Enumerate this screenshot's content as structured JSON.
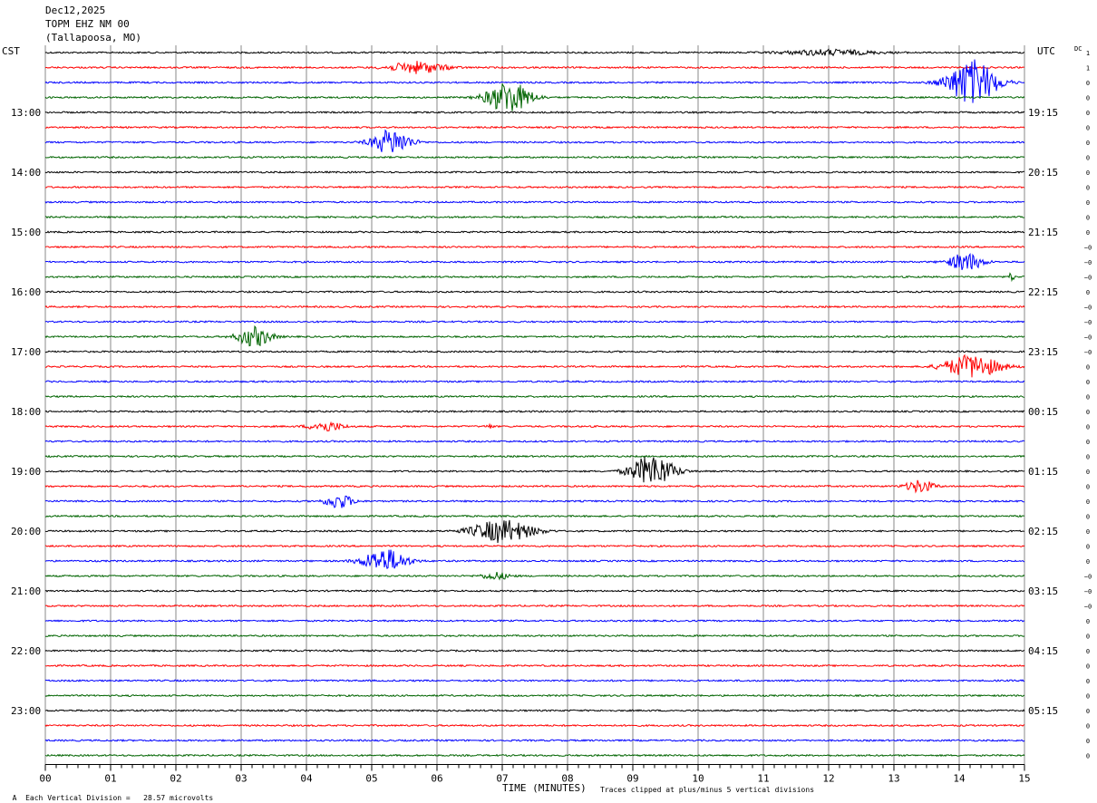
{
  "header": {
    "date": "Dec12,2025",
    "station": "TOPM EHZ NM 00",
    "location": "(Tallapoosa, MO)"
  },
  "labels": {
    "left_zone": "CST",
    "right_zone": "UTC",
    "dc": "DC",
    "xlabel": "TIME (MINUTES)",
    "scale_note": "Each Vertical Division =   28.57 microvolts",
    "clip_note": "Traces clipped at plus/minus 5 vertical divisions",
    "corner_mark": "A"
  },
  "colors": {
    "trace_cycle": [
      "#000000",
      "#ff0000",
      "#0000ff",
      "#006400"
    ],
    "grid": "#888888"
  },
  "chart_data": {
    "type": "line",
    "title": "",
    "xlabel": "TIME (MINUTES)",
    "xlim": [
      0,
      15
    ],
    "x_ticks": [
      "00",
      "01",
      "02",
      "03",
      "04",
      "05",
      "06",
      "07",
      "08",
      "09",
      "10",
      "11",
      "12",
      "13",
      "14",
      "15"
    ],
    "left_time_labels": [
      "13:00",
      "14:00",
      "15:00",
      "16:00",
      "17:00",
      "18:00",
      "19:00",
      "20:00",
      "21:00",
      "22:00",
      "23:00"
    ],
    "right_time_labels": [
      "19:15",
      "20:15",
      "21:15",
      "22:15",
      "23:15",
      "00:15",
      "01:15",
      "02:15",
      "03:15",
      "04:15",
      "05:15"
    ],
    "traces_per_hour": 4,
    "trace_count": 48,
    "dc_offsets": [
      "1",
      "1",
      "0",
      "0",
      "0",
      "0",
      "0",
      "0",
      "0",
      "0",
      "0",
      "0",
      "0",
      "−0",
      "−0",
      "−0",
      "0",
      "−0",
      "−0",
      "−0",
      "−0",
      "0",
      "0",
      "0",
      "0",
      "0",
      "0",
      "0",
      "0",
      "0",
      "0",
      "0",
      "0",
      "0",
      "0",
      "−0",
      "−0",
      "−0",
      "0",
      "0",
      "0",
      "0",
      "0",
      "0",
      "0",
      "0",
      "0",
      "0"
    ],
    "events": [
      {
        "trace": 0,
        "center_min": 12.0,
        "width_min": 1.6,
        "amp": 0.6
      },
      {
        "trace": 1,
        "center_min": 5.7,
        "width_min": 1.0,
        "amp": 1.3
      },
      {
        "trace": 2,
        "center_min": 14.2,
        "width_min": 0.9,
        "amp": 5.0
      },
      {
        "trace": 3,
        "center_min": 7.1,
        "width_min": 0.8,
        "amp": 3.5
      },
      {
        "trace": 6,
        "center_min": 5.3,
        "width_min": 0.7,
        "amp": 2.8
      },
      {
        "trace": 14,
        "center_min": 14.1,
        "width_min": 0.6,
        "amp": 2.0
      },
      {
        "trace": 15,
        "center_min": 14.8,
        "width_min": 0.1,
        "amp": 1.0
      },
      {
        "trace": 19,
        "center_min": 3.2,
        "width_min": 0.6,
        "amp": 2.2
      },
      {
        "trace": 21,
        "center_min": 14.2,
        "width_min": 1.0,
        "amp": 2.6
      },
      {
        "trace": 25,
        "center_min": 4.3,
        "width_min": 0.6,
        "amp": 1.1
      },
      {
        "trace": 25,
        "center_min": 6.8,
        "width_min": 0.15,
        "amp": 0.4
      },
      {
        "trace": 28,
        "center_min": 9.3,
        "width_min": 0.8,
        "amp": 3.5
      },
      {
        "trace": 29,
        "center_min": 13.4,
        "width_min": 0.5,
        "amp": 1.4
      },
      {
        "trace": 30,
        "center_min": 4.5,
        "width_min": 0.5,
        "amp": 1.6
      },
      {
        "trace": 32,
        "center_min": 7.0,
        "width_min": 1.1,
        "amp": 2.5
      },
      {
        "trace": 34,
        "center_min": 5.2,
        "width_min": 0.8,
        "amp": 2.6
      },
      {
        "trace": 35,
        "center_min": 6.9,
        "width_min": 0.5,
        "amp": 0.8
      }
    ]
  }
}
